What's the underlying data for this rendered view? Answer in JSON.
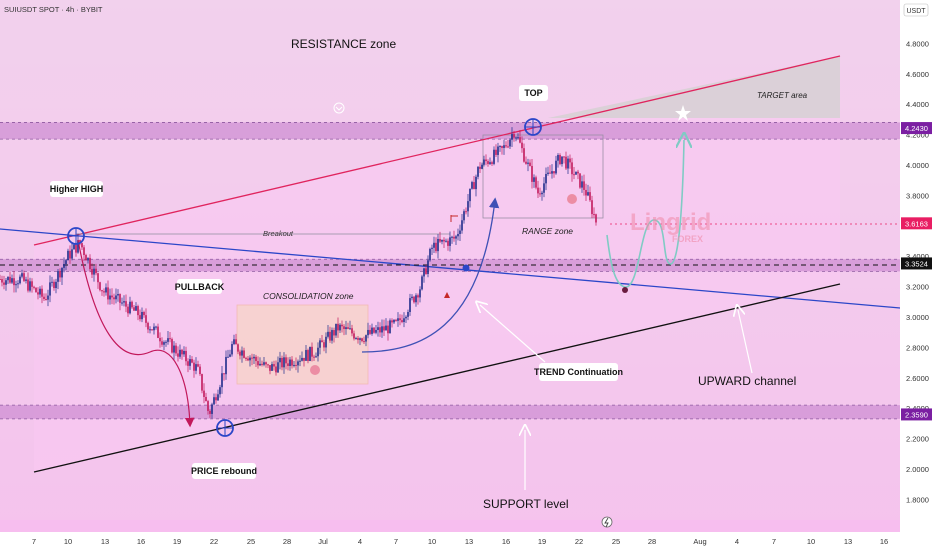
{
  "header": {
    "symbol_line": "SUIUSDT SPOT · 4h · BYBIT",
    "currency": "USDT"
  },
  "annotations": {
    "resistance_zone": "RESISTANCE zone",
    "support_level": "SUPPORT level",
    "upward_channel": "UPWARD channel",
    "target_area": "TARGET area",
    "range_zone": "RANGE zone",
    "consolidation_zone": "CONSOLIDATION zone",
    "breakout": "Breakout",
    "higher_high": "Higher HIGH",
    "pullback": "PULLBACK",
    "price_rebound": "PRICE rebound",
    "top": "TOP",
    "trend_continuation": "TREND Continuation"
  },
  "watermark": {
    "name": "Lingrid",
    "sub": "FOREX"
  },
  "colors": {
    "background_top": "#f3d3ef",
    "background_bottom": "#f7bdef",
    "resistance_line": "#e0245e",
    "channel_top_line": "#2b46c8",
    "channel_bottom_line": "#111111",
    "zone_band": "#cf8fd3",
    "candle_up": "#1d2b8a",
    "candle_down": "#c2185b",
    "arrow_pullback": "#c2185b",
    "arrow_trend": "#3f51b5",
    "projection": "#80cbc4",
    "marker_blue": "#2b46c8"
  },
  "price_scale": {
    "ticks": [
      "4.8000",
      "4.6000",
      "4.4000",
      "4.2000",
      "4.0000",
      "3.8000",
      "3.6000",
      "3.4000",
      "3.2000",
      "3.0000",
      "2.8000",
      "2.6000",
      "2.4000",
      "2.2000",
      "2.0000",
      "1.8000"
    ],
    "labels": [
      {
        "text": "4.2430",
        "value": 4.243,
        "color": "#7b1fa2"
      },
      {
        "text": "3.6163",
        "value": 3.6163,
        "color": "#e91e63"
      },
      {
        "text": "3.3524",
        "value": 3.3524,
        "color": "#111111"
      },
      {
        "text": "2.3590",
        "value": 2.359,
        "color": "#7b1fa2"
      }
    ]
  },
  "time_scale": {
    "ticks": [
      "7",
      "10",
      "13",
      "16",
      "19",
      "22",
      "25",
      "28",
      "Jul",
      "4",
      "7",
      "10",
      "13",
      "16",
      "19",
      "22",
      "25",
      "28",
      "Aug",
      "4",
      "7",
      "10",
      "13",
      "16"
    ]
  },
  "chart_data": {
    "type": "candlestick",
    "title": "SUIUSDT SPOT · 4h · BYBIT",
    "ylabel": "USDT",
    "ylim": [
      1.6,
      5.0
    ],
    "levels": {
      "resistance": 4.243,
      "current": 3.6163,
      "range_support": 3.3524,
      "support": 2.359
    },
    "price_path": [
      {
        "date": "Jun 6",
        "price": 3.25
      },
      {
        "date": "Jun 8",
        "price": 3.12
      },
      {
        "date": "Jun 10",
        "price": 3.4
      },
      {
        "date": "Jun 11",
        "price": 3.49
      },
      {
        "date": "Jun 13",
        "price": 3.17
      },
      {
        "date": "Jun 16",
        "price": 3.02
      },
      {
        "date": "Jun 18",
        "price": 2.86
      },
      {
        "date": "Jun 21",
        "price": 2.66
      },
      {
        "date": "Jun 22",
        "price": 2.36
      },
      {
        "date": "Jun 24",
        "price": 2.82
      },
      {
        "date": "Jun 27",
        "price": 2.66
      },
      {
        "date": "Jul 1",
        "price": 2.77
      },
      {
        "date": "Jul 3",
        "price": 2.93
      },
      {
        "date": "Jul 5",
        "price": 2.87
      },
      {
        "date": "Jul 8",
        "price": 2.95
      },
      {
        "date": "Jul 10",
        "price": 3.2
      },
      {
        "date": "Jul 11",
        "price": 3.46
      },
      {
        "date": "Jul 13",
        "price": 3.52
      },
      {
        "date": "Jul 15",
        "price": 3.99
      },
      {
        "date": "Jul 17",
        "price": 4.1
      },
      {
        "date": "Jul 18",
        "price": 4.23
      },
      {
        "date": "Jul 20",
        "price": 3.82
      },
      {
        "date": "Jul 22",
        "price": 4.06
      },
      {
        "date": "Jul 24",
        "price": 3.84
      },
      {
        "date": "Jul 25",
        "price": 3.62
      }
    ],
    "projection": [
      {
        "date": "Jul 25",
        "price": 3.52
      },
      {
        "date": "Jul 26",
        "price": 3.26
      },
      {
        "date": "Jul 27",
        "price": 3.46
      },
      {
        "date": "Jul 28",
        "price": 3.78
      },
      {
        "date": "Jul 29",
        "price": 3.62
      },
      {
        "date": "Jul 31",
        "price": 3.46
      },
      {
        "date": "Aug 1",
        "price": 3.95
      },
      {
        "date": "Aug 1",
        "price": 4.32
      }
    ],
    "zones": [
      {
        "name": "RESISTANCE zone",
        "price_range": [
          4.17,
          4.28
        ]
      },
      {
        "name": "SUPPORT level",
        "price_range": [
          2.33,
          2.42
        ]
      },
      {
        "name": "RANGE zone",
        "price_range": [
          3.3,
          3.38
        ]
      }
    ]
  }
}
